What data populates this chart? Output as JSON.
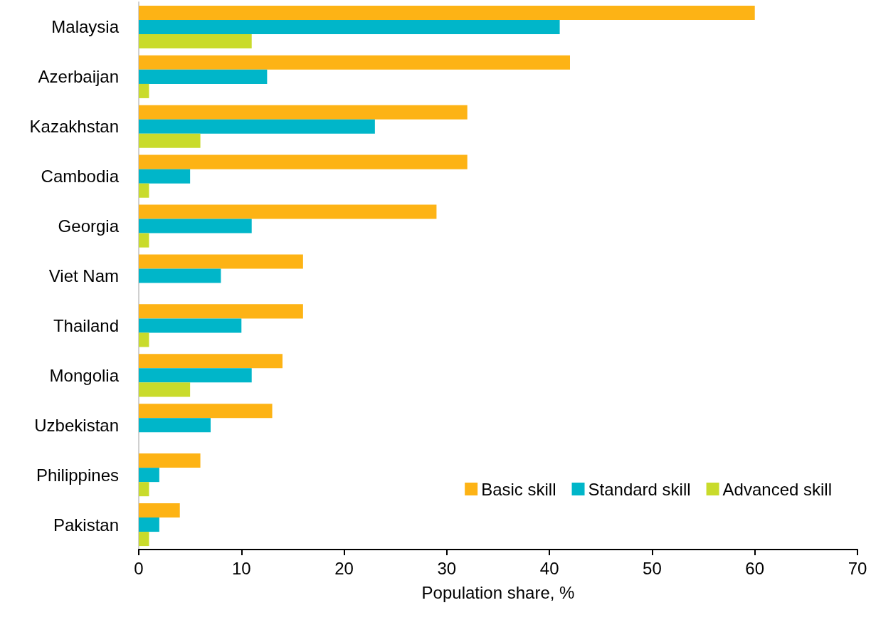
{
  "chart_data": {
    "type": "bar",
    "orientation": "horizontal",
    "xlabel": "Population share, %",
    "categories": [
      "Malaysia",
      "Azerbaijan",
      "Kazakhstan",
      "Cambodia",
      "Georgia",
      "Viet Nam",
      "Thailand",
      "Mongolia",
      "Uzbekistan",
      "Philippines",
      "Pakistan"
    ],
    "series": [
      {
        "name": "Basic skill",
        "color": "#fdb315",
        "values": [
          60,
          42,
          32,
          32,
          29,
          16,
          16,
          14,
          13,
          6,
          4
        ]
      },
      {
        "name": "Standard skill",
        "color": "#00b6c9",
        "values": [
          41,
          12.5,
          23,
          5,
          11,
          8,
          10,
          11,
          7,
          2,
          2
        ]
      },
      {
        "name": "Advanced skill",
        "color": "#c9db2b",
        "values": [
          11,
          1,
          6,
          1,
          1,
          null,
          1,
          5,
          null,
          1,
          1
        ]
      }
    ],
    "xlim": [
      0,
      70
    ],
    "xticks": [
      0,
      10,
      20,
      30,
      40,
      50,
      60,
      70
    ],
    "grid": false,
    "legend": "bottom right"
  }
}
